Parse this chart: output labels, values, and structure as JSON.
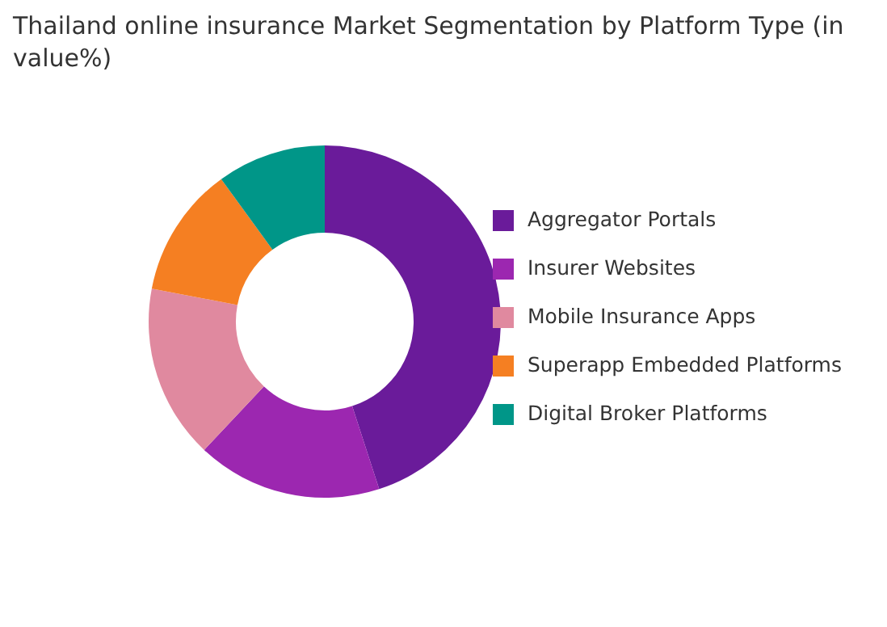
{
  "chart_data": {
    "type": "donut",
    "title": "Thailand online insurance Market Segmentation by Platform Type (in value%)",
    "categories": [
      "Aggregator Portals",
      "Insurer Websites",
      "Mobile Insurance Apps",
      "Superapp Embedded Platforms",
      "Digital Broker Platforms"
    ],
    "values": [
      45,
      17,
      16,
      12,
      10
    ],
    "colors": [
      "#6a1b9a",
      "#9c27b0",
      "#e0899f",
      "#f57f22",
      "#009688"
    ],
    "legend": "right"
  }
}
